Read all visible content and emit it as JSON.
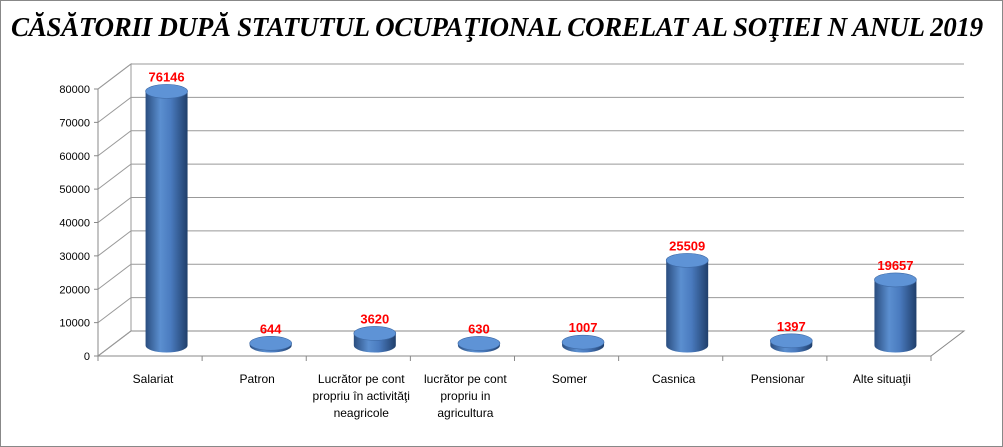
{
  "chart_data": {
    "type": "bar",
    "style": "3d-cylinder",
    "title": "CĂSĂTORII DUPĂ STATUTUL OCUPAŢIONAL CORELAT AL SOŢIEI N ANUL 2019",
    "categories": [
      "Salariat",
      "Patron",
      "Lucrător pe cont propriu în activităţi neagricole",
      "lucrător pe cont propriu in agricultura",
      "Somer",
      "Casnica",
      "Pensionar",
      "Alte situaţii"
    ],
    "values": [
      76146,
      644,
      3620,
      630,
      1007,
      25509,
      1397,
      19657
    ],
    "data_labels": [
      "76146",
      "644",
      "3620",
      "630",
      "1007",
      "25509",
      "1397",
      "19657"
    ],
    "ylim": [
      0,
      80000
    ],
    "yticks": [
      "0",
      "10000",
      "20000",
      "30000",
      "40000",
      "50000",
      "60000",
      "70000",
      "80000"
    ],
    "grid": true,
    "legend": "none",
    "colors": {
      "bar": "#4f81bd",
      "label": "#ff0000"
    }
  }
}
